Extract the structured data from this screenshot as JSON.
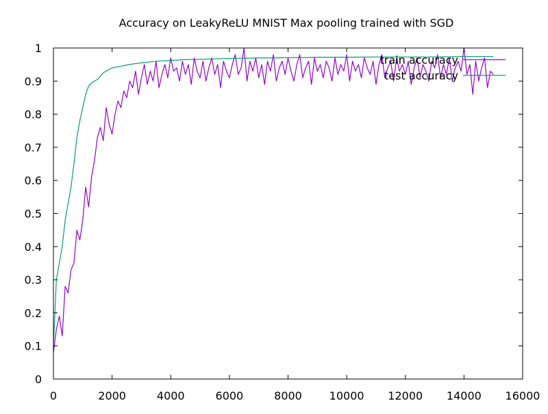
{
  "chart_data": {
    "type": "line",
    "title": "Accuracy on LeakyReLU MNIST Max pooling trained with SGD",
    "xlabel": "",
    "ylabel": "",
    "xlim": [
      0,
      16000
    ],
    "ylim": [
      0,
      1
    ],
    "x_ticks": [
      0,
      2000,
      4000,
      6000,
      8000,
      10000,
      12000,
      14000,
      16000
    ],
    "y_ticks": [
      0,
      0.1,
      0.2,
      0.3,
      0.4,
      0.5,
      0.6,
      0.7,
      0.8,
      0.9,
      1
    ],
    "grid": false,
    "legend_position": "top-right",
    "series": [
      {
        "name": "train accuracy",
        "color": "#9400d3",
        "x": [
          0,
          100,
          200,
          300,
          400,
          500,
          600,
          700,
          800,
          900,
          1000,
          1100,
          1200,
          1300,
          1400,
          1500,
          1600,
          1700,
          1800,
          1900,
          2000,
          2100,
          2200,
          2300,
          2400,
          2500,
          2600,
          2700,
          2800,
          2900,
          3000,
          3100,
          3200,
          3300,
          3400,
          3500,
          3600,
          3700,
          3800,
          3900,
          4000,
          4100,
          4200,
          4300,
          4400,
          4500,
          4600,
          4700,
          4800,
          4900,
          5000,
          5100,
          5200,
          5300,
          5400,
          5500,
          5600,
          5700,
          5800,
          5900,
          6000,
          6100,
          6200,
          6300,
          6400,
          6500,
          6600,
          6700,
          6800,
          6900,
          7000,
          7100,
          7200,
          7300,
          7400,
          7500,
          7600,
          7700,
          7800,
          7900,
          8000,
          8100,
          8200,
          8300,
          8400,
          8500,
          8600,
          8700,
          8800,
          8900,
          9000,
          9100,
          9200,
          9300,
          9400,
          9500,
          9600,
          9700,
          9800,
          9900,
          10000,
          10100,
          10200,
          10300,
          10400,
          10500,
          10600,
          10700,
          10800,
          10900,
          11000,
          11100,
          11200,
          11300,
          11400,
          11500,
          11600,
          11700,
          11800,
          11900,
          12000,
          12100,
          12200,
          12300,
          12400,
          12500,
          12600,
          12700,
          12800,
          12900,
          13000,
          13100,
          13200,
          13300,
          13400,
          13500,
          13600,
          13700,
          13800,
          13900,
          14000,
          14100,
          14200,
          14300,
          14400,
          14500,
          14600,
          14700,
          14800,
          14900,
          15000
        ],
        "y": [
          0.08,
          0.15,
          0.19,
          0.13,
          0.28,
          0.26,
          0.33,
          0.35,
          0.45,
          0.42,
          0.48,
          0.58,
          0.52,
          0.61,
          0.66,
          0.73,
          0.76,
          0.72,
          0.82,
          0.77,
          0.74,
          0.8,
          0.84,
          0.82,
          0.87,
          0.85,
          0.9,
          0.88,
          0.93,
          0.86,
          0.91,
          0.95,
          0.89,
          0.93,
          0.9,
          0.96,
          0.88,
          0.92,
          0.95,
          0.91,
          0.97,
          0.93,
          0.94,
          0.9,
          0.96,
          0.92,
          0.95,
          0.89,
          0.97,
          0.93,
          0.91,
          0.96,
          0.9,
          0.94,
          0.97,
          0.92,
          0.95,
          0.88,
          0.96,
          0.93,
          0.91,
          0.95,
          0.98,
          0.92,
          0.94,
          1.0,
          0.9,
          0.96,
          0.93,
          0.97,
          0.91,
          0.95,
          0.89,
          0.96,
          0.93,
          0.98,
          0.9,
          0.94,
          0.96,
          0.92,
          0.97,
          0.93,
          0.9,
          0.95,
          0.98,
          0.91,
          0.94,
          0.96,
          0.89,
          0.97,
          0.93,
          0.95,
          0.91,
          0.96,
          0.94,
          0.9,
          0.97,
          0.92,
          0.95,
          0.93,
          0.98,
          0.9,
          0.96,
          0.93,
          0.95,
          0.91,
          0.97,
          0.94,
          0.92,
          0.96,
          0.89,
          0.95,
          0.98,
          0.91,
          0.94,
          0.96,
          0.9,
          0.97,
          0.93,
          0.95,
          0.92,
          0.96,
          0.89,
          0.94,
          0.97,
          0.91,
          0.95,
          0.93,
          0.9,
          0.96,
          0.94,
          0.98,
          0.91,
          0.95,
          0.92,
          0.97,
          0.9,
          0.94,
          0.96,
          0.93,
          1.0,
          0.92,
          0.95,
          0.86,
          0.96,
          0.9,
          0.94,
          0.97,
          0.88,
          0.93,
          0.92
        ]
      },
      {
        "name": "test accuracy",
        "color": "#009e73",
        "x": [
          0,
          100,
          200,
          300,
          400,
          500,
          600,
          700,
          800,
          900,
          1000,
          1100,
          1200,
          1300,
          1400,
          1500,
          1600,
          1700,
          1800,
          1900,
          2000,
          2200,
          2400,
          2600,
          2800,
          3000,
          3500,
          4000,
          4500,
          5000,
          5500,
          6000,
          6500,
          7000,
          7500,
          8000,
          8500,
          9000,
          10000,
          11000,
          12000,
          13000,
          14000,
          15000
        ],
        "y": [
          0.1,
          0.3,
          0.35,
          0.4,
          0.48,
          0.53,
          0.58,
          0.65,
          0.73,
          0.78,
          0.82,
          0.86,
          0.885,
          0.895,
          0.9,
          0.905,
          0.915,
          0.925,
          0.93,
          0.935,
          0.94,
          0.943,
          0.947,
          0.95,
          0.953,
          0.955,
          0.96,
          0.962,
          0.965,
          0.966,
          0.967,
          0.968,
          0.969,
          0.97,
          0.97,
          0.971,
          0.971,
          0.972,
          0.972,
          0.973,
          0.973,
          0.973,
          0.974,
          0.974
        ]
      }
    ]
  }
}
